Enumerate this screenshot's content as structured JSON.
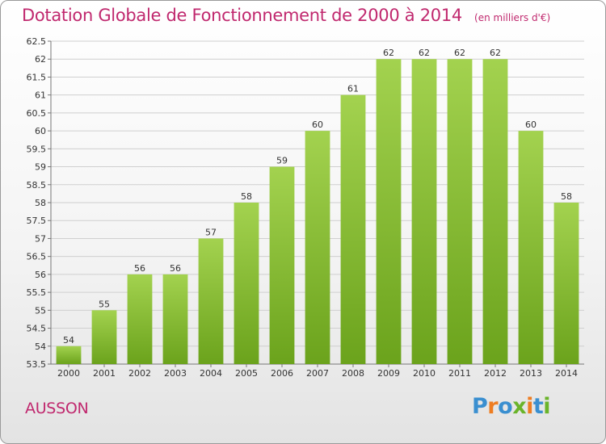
{
  "header": {
    "title": "Dotation Globale de Fonctionnement de 2000 à 2014",
    "unit": "(en milliers d'€)"
  },
  "commune": "AUSSON",
  "logo": {
    "letters": [
      "P",
      "r",
      "o",
      "x",
      "i",
      "t",
      "i"
    ]
  },
  "colors": {
    "title": "#c0286e",
    "bar_top": "#a3d24f",
    "bar_bottom": "#6ba31c",
    "grid": "#cfcfcf"
  },
  "chart_data": {
    "type": "bar",
    "title": "Dotation Globale de Fonctionnement de 2000 à 2014",
    "xlabel": "",
    "ylabel": "",
    "categories": [
      "2000",
      "2001",
      "2002",
      "2003",
      "2004",
      "2005",
      "2006",
      "2007",
      "2008",
      "2009",
      "2010",
      "2011",
      "2012",
      "2013",
      "2014"
    ],
    "values": [
      54,
      55,
      56,
      56,
      57,
      58,
      59,
      60,
      61,
      62,
      62,
      62,
      62,
      60,
      58
    ],
    "ylim": [
      53.5,
      62.5
    ],
    "yticks": [
      "53.5",
      "54",
      "54.5",
      "55",
      "55.5",
      "56",
      "56.5",
      "57",
      "57.5",
      "58",
      "58.5",
      "59",
      "59.5",
      "60",
      "60.5",
      "61",
      "61.5",
      "62",
      "62.5"
    ],
    "grid": true,
    "legend": "none"
  }
}
